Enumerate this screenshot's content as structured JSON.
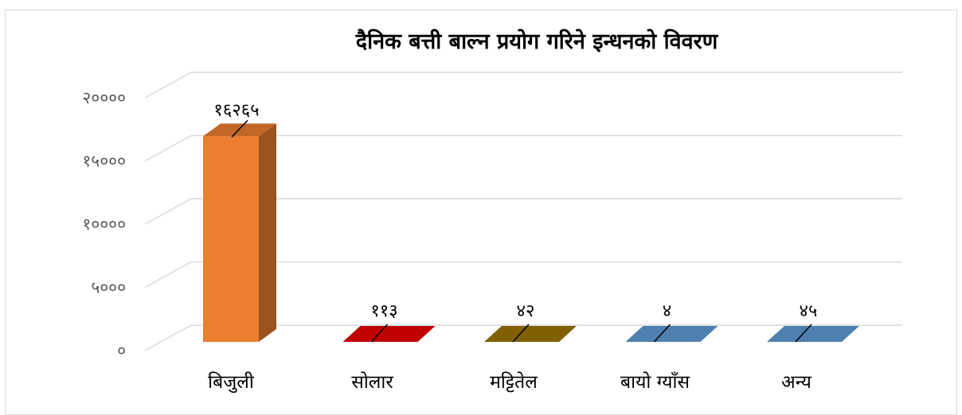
{
  "chart_data": {
    "type": "bar",
    "title": "दैनिक बत्ती बाल्न प्रयोग गरिने इन्धनको विवरण",
    "categories": [
      "बिजुली",
      "सोलार",
      "मट्टितेल",
      "बायो ग्याँस",
      "अन्य"
    ],
    "values": [
      16265,
      113,
      42,
      4,
      45
    ],
    "data_labels": [
      "१६२६५",
      "११३",
      "४२",
      "४",
      "४५"
    ],
    "colors": [
      "#ED7D31",
      "#C00000",
      "#806000",
      "#4E7FB0",
      "#4E7FB0"
    ],
    "yticks": [
      0,
      5000,
      10000,
      15000,
      20000
    ],
    "ytick_labels": [
      "०",
      "५०००",
      "१००००",
      "१५०००",
      "२००००"
    ],
    "ylim": [
      0,
      20000
    ],
    "grid": true,
    "legend": "none",
    "style": "3d-column"
  }
}
